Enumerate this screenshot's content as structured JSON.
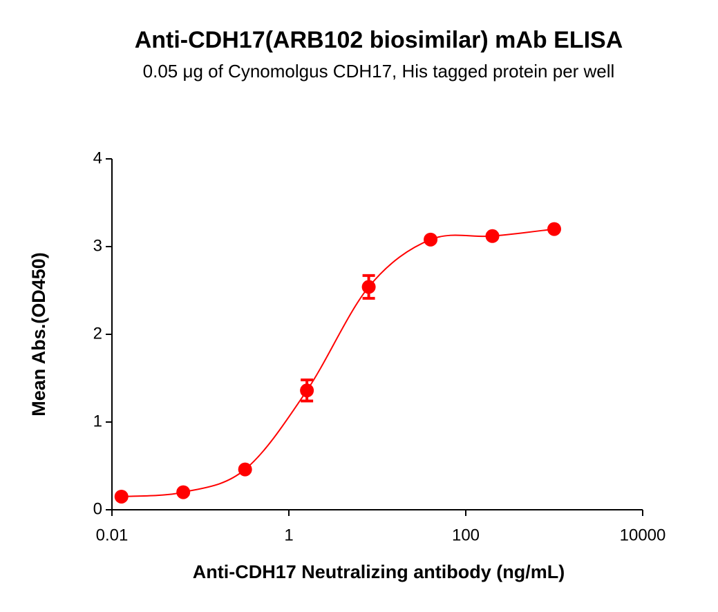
{
  "chart_data": {
    "type": "scatter",
    "title": "Anti-CDH17(ARB102 biosimilar) mAb ELISA",
    "subtitle": "0.05 μg of Cynomolgus CDH17, His tagged protein per well",
    "x_label": "Anti-CDH17 Neutralizing antibody (ng/mL)",
    "y_label": "Mean Abs.(OD450)",
    "xscale": "log",
    "xlim": [
      0.01,
      10000
    ],
    "xticks": [
      0.01,
      1,
      100,
      10000
    ],
    "ylim": [
      0,
      4
    ],
    "yticks": [
      0,
      1,
      2,
      3,
      4
    ],
    "curve": true,
    "series": [
      {
        "color": "#ff0000",
        "x": [
          0.0128,
          0.064,
          0.32,
          1.6,
          8,
          40,
          200,
          1000
        ],
        "values": [
          0.15,
          0.2,
          0.46,
          1.36,
          2.54,
          3.08,
          3.12,
          3.2
        ],
        "errors": [
          0.02,
          0.02,
          0.02,
          0.12,
          0.13,
          0.02,
          0.02,
          0.02
        ]
      }
    ]
  }
}
